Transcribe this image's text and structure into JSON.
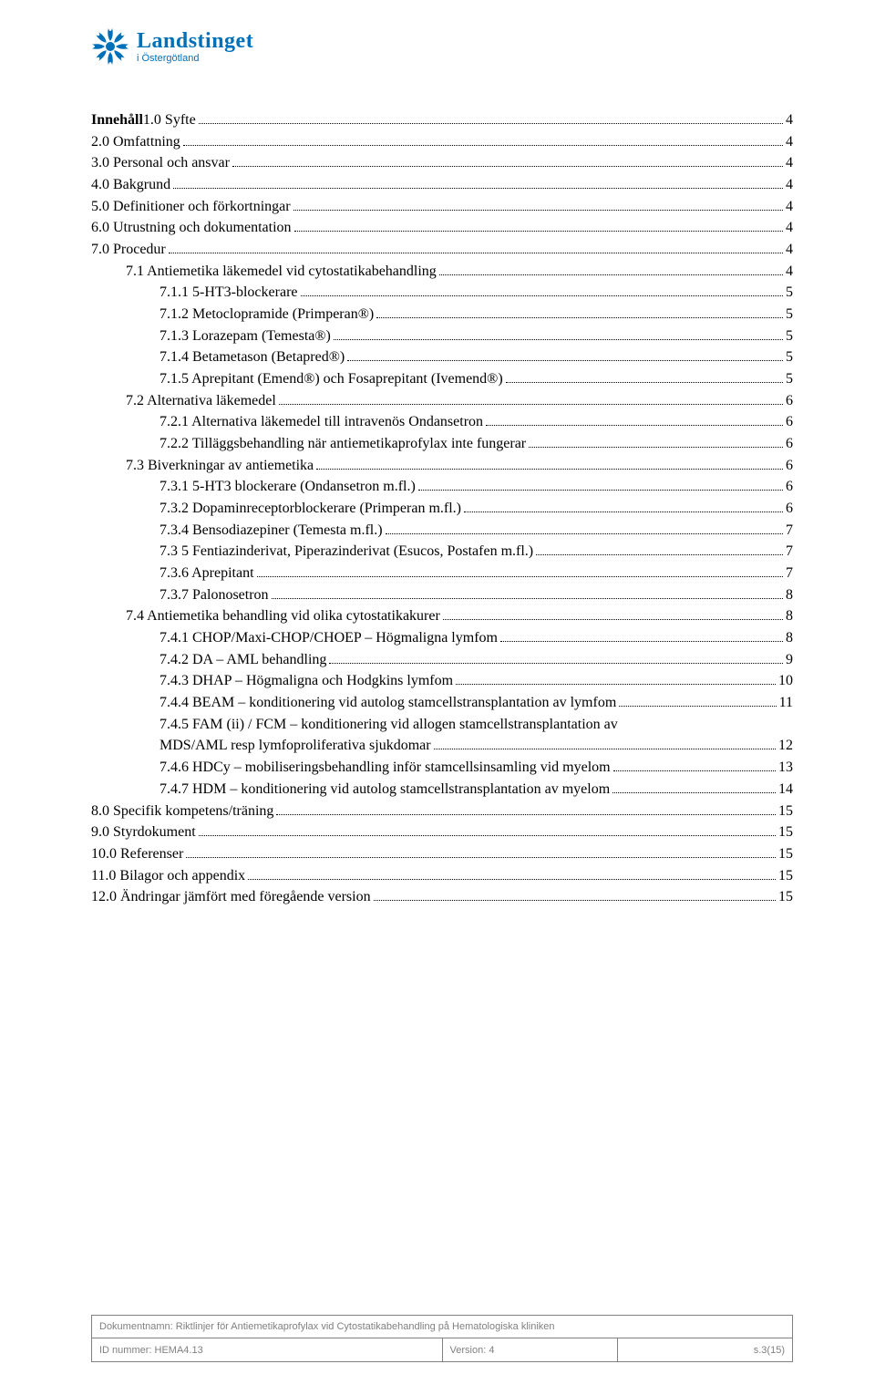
{
  "logo": {
    "main": "Landstinget",
    "sub": "i Östergötland",
    "color": "#0070b8"
  },
  "toc_heading_inline": {
    "prefix": "Innehåll",
    "first_entry_label": "1.0 Syfte",
    "first_entry_page": "4"
  },
  "toc": [
    {
      "label": "2.0 Omfattning",
      "page": "4",
      "indent": 0
    },
    {
      "label": "3.0 Personal och ansvar",
      "page": "4",
      "indent": 0
    },
    {
      "label": "4.0 Bakgrund",
      "page": "4",
      "indent": 0
    },
    {
      "label": "5.0 Definitioner och förkortningar",
      "page": "4",
      "indent": 0
    },
    {
      "label": "6.0 Utrustning och dokumentation",
      "page": "4",
      "indent": 0
    },
    {
      "label": "7.0 Procedur",
      "page": "4",
      "indent": 0
    },
    {
      "label": "7.1 Antiemetika läkemedel vid cytostatikabehandling",
      "page": "4",
      "indent": 1
    },
    {
      "label": "7.1.1 5-HT3-blockerare",
      "page": "5",
      "indent": 2
    },
    {
      "label": "7.1.2 Metoclopramide (Primperan®)",
      "page": "5",
      "indent": 2
    },
    {
      "label": "7.1.3 Lorazepam (Temesta®)",
      "page": "5",
      "indent": 2
    },
    {
      "label": "7.1.4 Betametason (Betapred®)",
      "page": "5",
      "indent": 2
    },
    {
      "label": "7.1.5 Aprepitant (Emend®) och Fosaprepitant (Ivemend®)",
      "page": "5",
      "indent": 2
    },
    {
      "label": "7.2 Alternativa läkemedel",
      "page": "6",
      "indent": 1
    },
    {
      "label": "7.2.1 Alternativa läkemedel till intravenös Ondansetron",
      "page": "6",
      "indent": 2
    },
    {
      "label": "7.2.2 Tilläggsbehandling när antiemetikaprofylax inte fungerar",
      "page": "6",
      "indent": 2
    },
    {
      "label": "7.3 Biverkningar av antiemetika",
      "page": "6",
      "indent": 1
    },
    {
      "label": "7.3.1 5-HT3 blockerare (Ondansetron m.fl.)",
      "page": "6",
      "indent": 2
    },
    {
      "label": "7.3.2 Dopaminreceptorblockerare (Primperan m.fl.)",
      "page": "6",
      "indent": 2
    },
    {
      "label": "7.3.4 Bensodiazepiner (Temesta m.fl.)",
      "page": "7",
      "indent": 2
    },
    {
      "label": "7.3 5 Fentiazinderivat, Piperazinderivat (Esucos, Postafen m.fl.)",
      "page": "7",
      "indent": 2
    },
    {
      "label": "7.3.6 Aprepitant",
      "page": "7",
      "indent": 2
    },
    {
      "label": "7.3.7 Palonosetron",
      "page": "8",
      "indent": 2
    },
    {
      "label": "7.4 Antiemetika behandling vid olika cytostatikakurer",
      "page": "8",
      "indent": 1
    },
    {
      "label": "7.4.1 CHOP/Maxi-CHOP/CHOEP – Högmaligna lymfom",
      "page": "8",
      "indent": 2
    },
    {
      "label": "7.4.2 DA – AML behandling",
      "page": "9",
      "indent": 2
    },
    {
      "label": "7.4.3 DHAP – Högmaligna och Hodgkins lymfom",
      "page": "10",
      "indent": 2
    },
    {
      "label": "7.4.4 BEAM – konditionering vid autolog stamcellstransplantation av lymfom",
      "page": "11",
      "indent": 2
    },
    {
      "label": "7.4.5 FAM (ii) / FCM – konditionering vid allogen stamcellstransplantation av MDS/AML resp lymfoproliferativa sjukdomar",
      "page": "12",
      "indent": 2,
      "wrap": true
    },
    {
      "label": "7.4.6 HDCy – mobiliseringsbehandling inför stamcellsinsamling vid myelom",
      "page": "13",
      "indent": 2
    },
    {
      "label": "7.4.7 HDM – konditionering vid autolog stamcellstransplantation av myelom",
      "page": "14",
      "indent": 2
    },
    {
      "label": "8.0 Specifik kompetens/träning",
      "page": "15",
      "indent": 0
    },
    {
      "label": "9.0 Styrdokument",
      "page": "15",
      "indent": 0
    },
    {
      "label": "10.0 Referenser",
      "page": "15",
      "indent": 0
    },
    {
      "label": "11.0 Bilagor och appendix",
      "page": "15",
      "indent": 0
    },
    {
      "label": "12.0 Ändringar jämfört med föregående version",
      "page": "15",
      "indent": 0
    }
  ],
  "toc_wrap_split": {
    "line1": "7.4.5 FAM (ii) / FCM – konditionering vid allogen stamcellstransplantation av",
    "line2": "MDS/AML resp lymfoproliferativa sjukdomar"
  },
  "footer": {
    "docname_label": "Dokumentnamn:",
    "docname_value": "Riktlinjer för Antiemetikaprofylax vid Cytostatikabehandling på Hematologiska kliniken",
    "id_label": "ID nummer:",
    "id_value": "HEMA4.13",
    "version_label": "Version:",
    "version_value": "4",
    "page_label": "s.3(15)"
  },
  "colors": {
    "text": "#000000",
    "footer_text": "#808080",
    "footer_border": "#808080",
    "logo": "#0070b8",
    "background": "#ffffff"
  },
  "fonts": {
    "body": "Times New Roman",
    "body_size_pt": 12,
    "footer": "Arial",
    "footer_size_pt": 8
  }
}
